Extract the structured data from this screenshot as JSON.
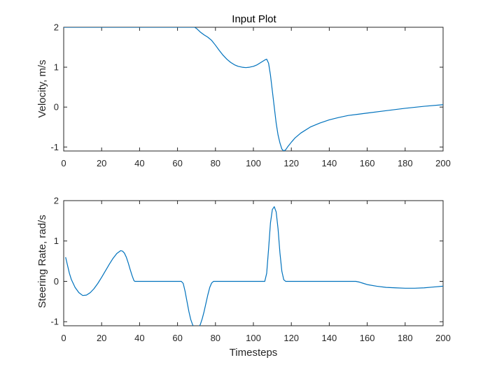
{
  "colors": {
    "line": "#0072BD",
    "axis": "#262626",
    "background": "#ffffff"
  },
  "chart_data": [
    {
      "type": "line",
      "title": "Input Plot",
      "xlabel": "",
      "ylabel": "Velocity, m/s",
      "xlim": [
        0,
        200
      ],
      "ylim": [
        -1.1,
        2
      ],
      "xticks": [
        0,
        20,
        40,
        60,
        80,
        100,
        120,
        140,
        160,
        180,
        200
      ],
      "yticks": [
        -1,
        0,
        1,
        2
      ],
      "grid": false,
      "series": [
        {
          "x": [
            0,
            10,
            20,
            30,
            40,
            50,
            60,
            65,
            69,
            70,
            72,
            74,
            76,
            78,
            80,
            82,
            84,
            86,
            88,
            90,
            92,
            94,
            96,
            98,
            100,
            102,
            104,
            106,
            107,
            108,
            109,
            110,
            111,
            112,
            113,
            114,
            115,
            116,
            117,
            118,
            120,
            122,
            125,
            130,
            135,
            140,
            145,
            150,
            155,
            160,
            170,
            180,
            190,
            200
          ],
          "y": [
            2,
            2,
            2,
            2,
            2,
            2,
            2,
            2,
            2,
            1.97,
            1.88,
            1.81,
            1.75,
            1.67,
            1.55,
            1.42,
            1.3,
            1.2,
            1.12,
            1.06,
            1.02,
            1.0,
            0.99,
            1.0,
            1.02,
            1.06,
            1.12,
            1.18,
            1.2,
            1.1,
            0.8,
            0.4,
            0.0,
            -0.4,
            -0.7,
            -0.9,
            -1.05,
            -1.1,
            -1.07,
            -1.0,
            -0.88,
            -0.77,
            -0.65,
            -0.5,
            -0.4,
            -0.32,
            -0.26,
            -0.21,
            -0.18,
            -0.15,
            -0.09,
            -0.03,
            0.02,
            0.06
          ]
        }
      ]
    },
    {
      "type": "line",
      "title": "",
      "xlabel": "Timesteps",
      "ylabel": "Steering Rate, rad/s",
      "xlim": [
        0,
        200
      ],
      "ylim": [
        -1.1,
        2
      ],
      "xticks": [
        0,
        20,
        40,
        60,
        80,
        100,
        120,
        140,
        160,
        180,
        200
      ],
      "yticks": [
        -1,
        0,
        1,
        2
      ],
      "grid": false,
      "series": [
        {
          "x": [
            1,
            2,
            3,
            4,
            6,
            8,
            10,
            12,
            14,
            16,
            18,
            20,
            22,
            24,
            26,
            28,
            30,
            31,
            32,
            33,
            34,
            35,
            36,
            37,
            37.5,
            38,
            50,
            62,
            63,
            64,
            65,
            66,
            67,
            68,
            69,
            70,
            71,
            72,
            73,
            74,
            75,
            76,
            77,
            78,
            79,
            80,
            90,
            100,
            106,
            107,
            108,
            109,
            110,
            111,
            112,
            113,
            114,
            115,
            116,
            117,
            130,
            150,
            154,
            156,
            158,
            160,
            165,
            170,
            175,
            180,
            185,
            190,
            195,
            200
          ],
          "y": [
            0.6,
            0.4,
            0.2,
            0.05,
            -0.15,
            -0.28,
            -0.35,
            -0.34,
            -0.28,
            -0.18,
            -0.05,
            0.1,
            0.26,
            0.42,
            0.57,
            0.69,
            0.76,
            0.75,
            0.7,
            0.6,
            0.46,
            0.3,
            0.15,
            0.02,
            0.0,
            0.0,
            0.0,
            0.0,
            -0.05,
            -0.25,
            -0.5,
            -0.75,
            -0.95,
            -1.08,
            -1.15,
            -1.17,
            -1.15,
            -1.07,
            -0.93,
            -0.75,
            -0.54,
            -0.33,
            -0.15,
            -0.04,
            0.0,
            0.0,
            0.0,
            0.0,
            0.0,
            0.2,
            0.8,
            1.45,
            1.78,
            1.85,
            1.72,
            1.3,
            0.7,
            0.25,
            0.04,
            0.0,
            0.0,
            0.0,
            0.0,
            -0.02,
            -0.05,
            -0.08,
            -0.12,
            -0.15,
            -0.16,
            -0.17,
            -0.17,
            -0.16,
            -0.14,
            -0.12
          ]
        }
      ]
    }
  ]
}
